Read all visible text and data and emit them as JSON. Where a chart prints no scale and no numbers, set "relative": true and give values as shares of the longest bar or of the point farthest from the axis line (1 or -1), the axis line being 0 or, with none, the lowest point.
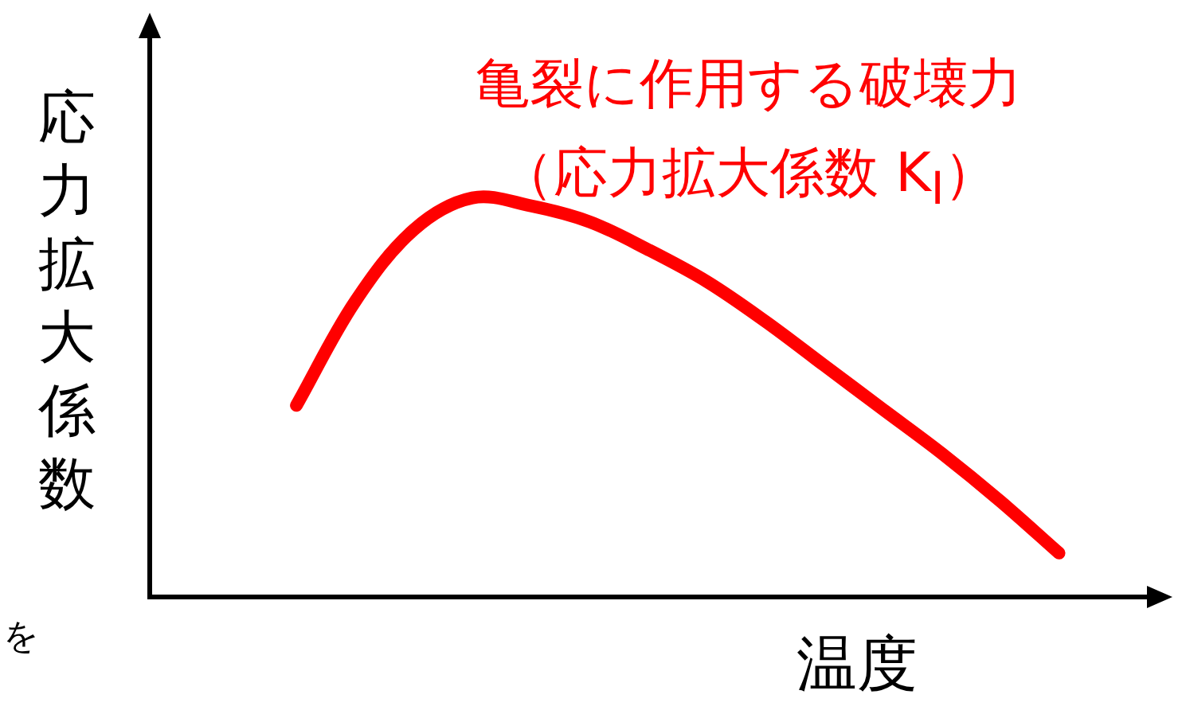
{
  "chart_data": {
    "type": "line",
    "title": "亀裂に作用する破壊力",
    "subtitle": "（応力拡大係数 K$_{I}$）",
    "xlabel": "温度",
    "ylabel": "応力拡大係数",
    "annotations": [
      "を"
    ],
    "relative": true,
    "legend": false,
    "grid": false,
    "marker": "none",
    "line_style": "solid",
    "categories": [
      null,
      null,
      null,
      null,
      null,
      null,
      null,
      null,
      null,
      null,
      null,
      null,
      null,
      null,
      null,
      null,
      null
    ],
    "series": [
      {
        "color": "#ff0000",
        "values": [
          null,
          null,
          0.48,
          0.74,
          0.92,
          1,
          0.98,
          0.94,
          0.87,
          0.79,
          0.69,
          0.58,
          0.47,
          0.36,
          0.24,
          0.11,
          null
        ]
      }
    ]
  }
}
